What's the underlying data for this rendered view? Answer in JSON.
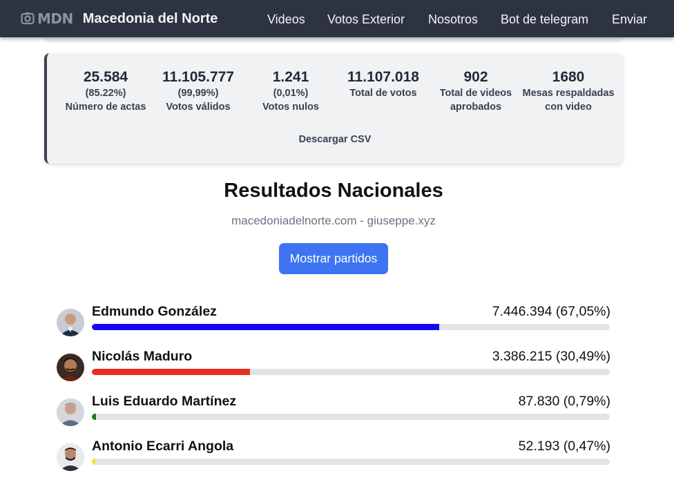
{
  "nav": {
    "logo_text": "MDN",
    "brand": "Macedonia del Norte",
    "links": [
      "Videos",
      "Votos Exterior",
      "Nosotros",
      "Bot de telegram",
      "Enviar"
    ]
  },
  "stats": [
    {
      "value": "25.584",
      "sub": "(85.22%)",
      "label": "Número de actas"
    },
    {
      "value": "11.105.777",
      "sub": "(99,99%)",
      "label": "Votos válidos"
    },
    {
      "value": "1.241",
      "sub": "(0,01%)",
      "label": "Votos nulos"
    },
    {
      "value": "11.107.018",
      "sub": "",
      "label": "Total de votos"
    },
    {
      "value": "902",
      "sub": "",
      "label": "Total de videos aprobados"
    },
    {
      "value": "1680",
      "sub": "",
      "label": "Mesas respaldadas con video"
    }
  ],
  "download_csv": "Descargar CSV",
  "results": {
    "title": "Resultados Nacionales",
    "subtitle": "macedoniadelnorte.com - giuseppe.xyz",
    "toggle_button": "Mostrar partidos"
  },
  "candidates": [
    {
      "name": "Edmundo González",
      "votes": "7.446.394 (67,05%)",
      "share": 0.6705,
      "color": "#1406ef",
      "avatar_icon": "candidate-photo-icon"
    },
    {
      "name": "Nicolás Maduro",
      "votes": "3.386.215 (30,49%)",
      "share": 0.3049,
      "color": "#ea2c1f",
      "avatar_icon": "candidate-photo-icon"
    },
    {
      "name": "Luis Eduardo Martínez",
      "votes": "87.830 (0,79%)",
      "share": 0.0079,
      "color": "#1d7a1a",
      "avatar_icon": "candidate-photo-icon"
    },
    {
      "name": "Antonio Ecarri Angola",
      "votes": "52.193 (0,47%)",
      "share": 0.0047,
      "color": "#f2e62b",
      "avatar_icon": "candidate-photo-icon"
    }
  ]
}
